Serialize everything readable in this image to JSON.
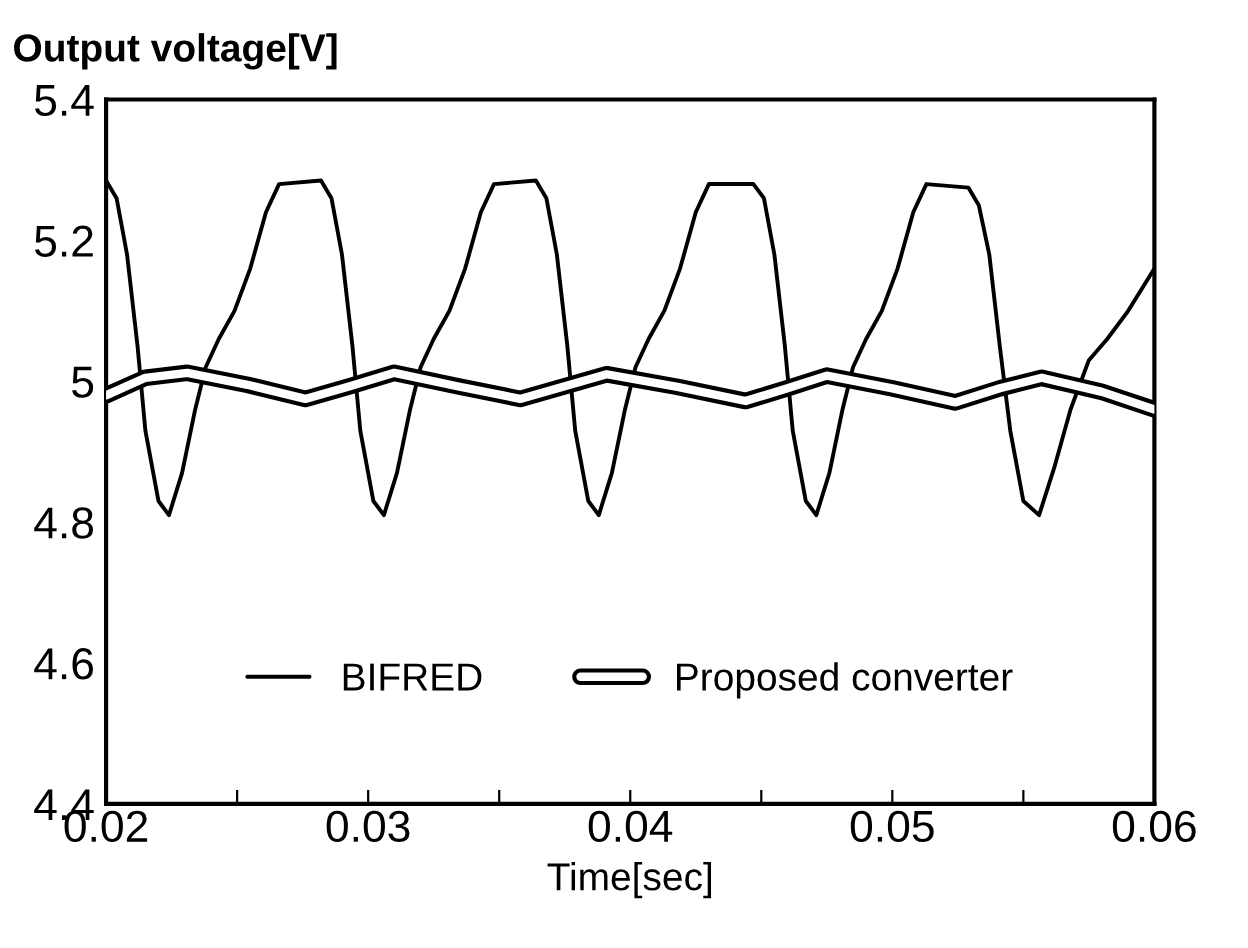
{
  "chart_data": {
    "type": "line",
    "title": "Output voltage[V]",
    "xlabel": "Time[sec]",
    "xlim": [
      0.02,
      0.06
    ],
    "ylim": [
      4.4,
      5.4
    ],
    "xticks": [
      0.02,
      {
        "value": 0.025,
        "label": null
      },
      0.03,
      {
        "value": 0.035,
        "label": null
      },
      0.04,
      {
        "value": 0.045,
        "label": null
      },
      0.05,
      {
        "value": 0.055,
        "label": null
      },
      0.06
    ],
    "yticks": [
      4.4,
      4.6,
      4.8,
      5,
      5.2,
      5.4
    ],
    "grid": false,
    "legend": "bottom",
    "marker": "none",
    "series": [
      {
        "name": "BIFRED",
        "color": "#000000",
        "line_style": "solid",
        "x": [
          0.02,
          0.0204,
          0.0208,
          0.0212,
          0.0215,
          0.022,
          0.0224,
          0.0229,
          0.0234,
          0.0238,
          0.0243,
          0.0249,
          0.0255,
          0.0261,
          0.0266,
          0.0282,
          0.0286,
          0.029,
          0.0294,
          0.0297,
          0.0302,
          0.0306,
          0.0311,
          0.0316,
          0.032,
          0.0325,
          0.0331,
          0.0337,
          0.0343,
          0.0348,
          0.0364,
          0.0368,
          0.0372,
          0.0376,
          0.0379,
          0.0384,
          0.0388,
          0.0393,
          0.0398,
          0.0402,
          0.0407,
          0.0413,
          0.0419,
          0.0425,
          0.043,
          0.0447,
          0.0451,
          0.0455,
          0.0459,
          0.0462,
          0.0467,
          0.0471,
          0.0476,
          0.0481,
          0.0485,
          0.049,
          0.0496,
          0.0502,
          0.0508,
          0.0513,
          0.0529,
          0.0533,
          0.0537,
          0.0541,
          0.0545,
          0.055,
          0.0556,
          0.0562,
          0.0568,
          0.0575,
          0.0582,
          0.059,
          0.06
        ],
        "values": [
          5.285,
          5.26,
          5.18,
          5.05,
          4.93,
          4.83,
          4.81,
          4.87,
          4.96,
          5.02,
          5.06,
          5.1,
          5.16,
          5.24,
          5.28,
          5.285,
          5.26,
          5.18,
          5.05,
          4.93,
          4.83,
          4.81,
          4.87,
          4.96,
          5.02,
          5.06,
          5.1,
          5.16,
          5.24,
          5.28,
          5.285,
          5.26,
          5.18,
          5.05,
          4.93,
          4.83,
          4.81,
          4.87,
          4.96,
          5.02,
          5.06,
          5.1,
          5.16,
          5.24,
          5.28,
          5.28,
          5.26,
          5.18,
          5.05,
          4.93,
          4.83,
          4.81,
          4.87,
          4.96,
          5.02,
          5.06,
          5.1,
          5.16,
          5.24,
          5.28,
          5.275,
          5.25,
          5.18,
          5.05,
          4.93,
          4.83,
          4.81,
          4.88,
          4.96,
          5.03,
          5.06,
          5.1,
          5.16
        ]
      },
      {
        "name": "Proposed converter",
        "color": "#000000",
        "line_style": "solid",
        "x": [
          0.02,
          0.0215,
          0.0231,
          0.0254,
          0.0276,
          0.0293,
          0.031,
          0.0334,
          0.0358,
          0.0375,
          0.0391,
          0.0418,
          0.0444,
          0.046,
          0.0475,
          0.05,
          0.0524,
          0.0541,
          0.0557,
          0.058,
          0.06
        ],
        "values": [
          4.98,
          5.005,
          5.012,
          4.995,
          4.975,
          4.993,
          5.012,
          4.993,
          4.975,
          4.993,
          5.01,
          4.992,
          4.972,
          4.99,
          5.008,
          4.99,
          4.97,
          4.99,
          5.005,
          4.985,
          4.96
        ]
      }
    ]
  }
}
